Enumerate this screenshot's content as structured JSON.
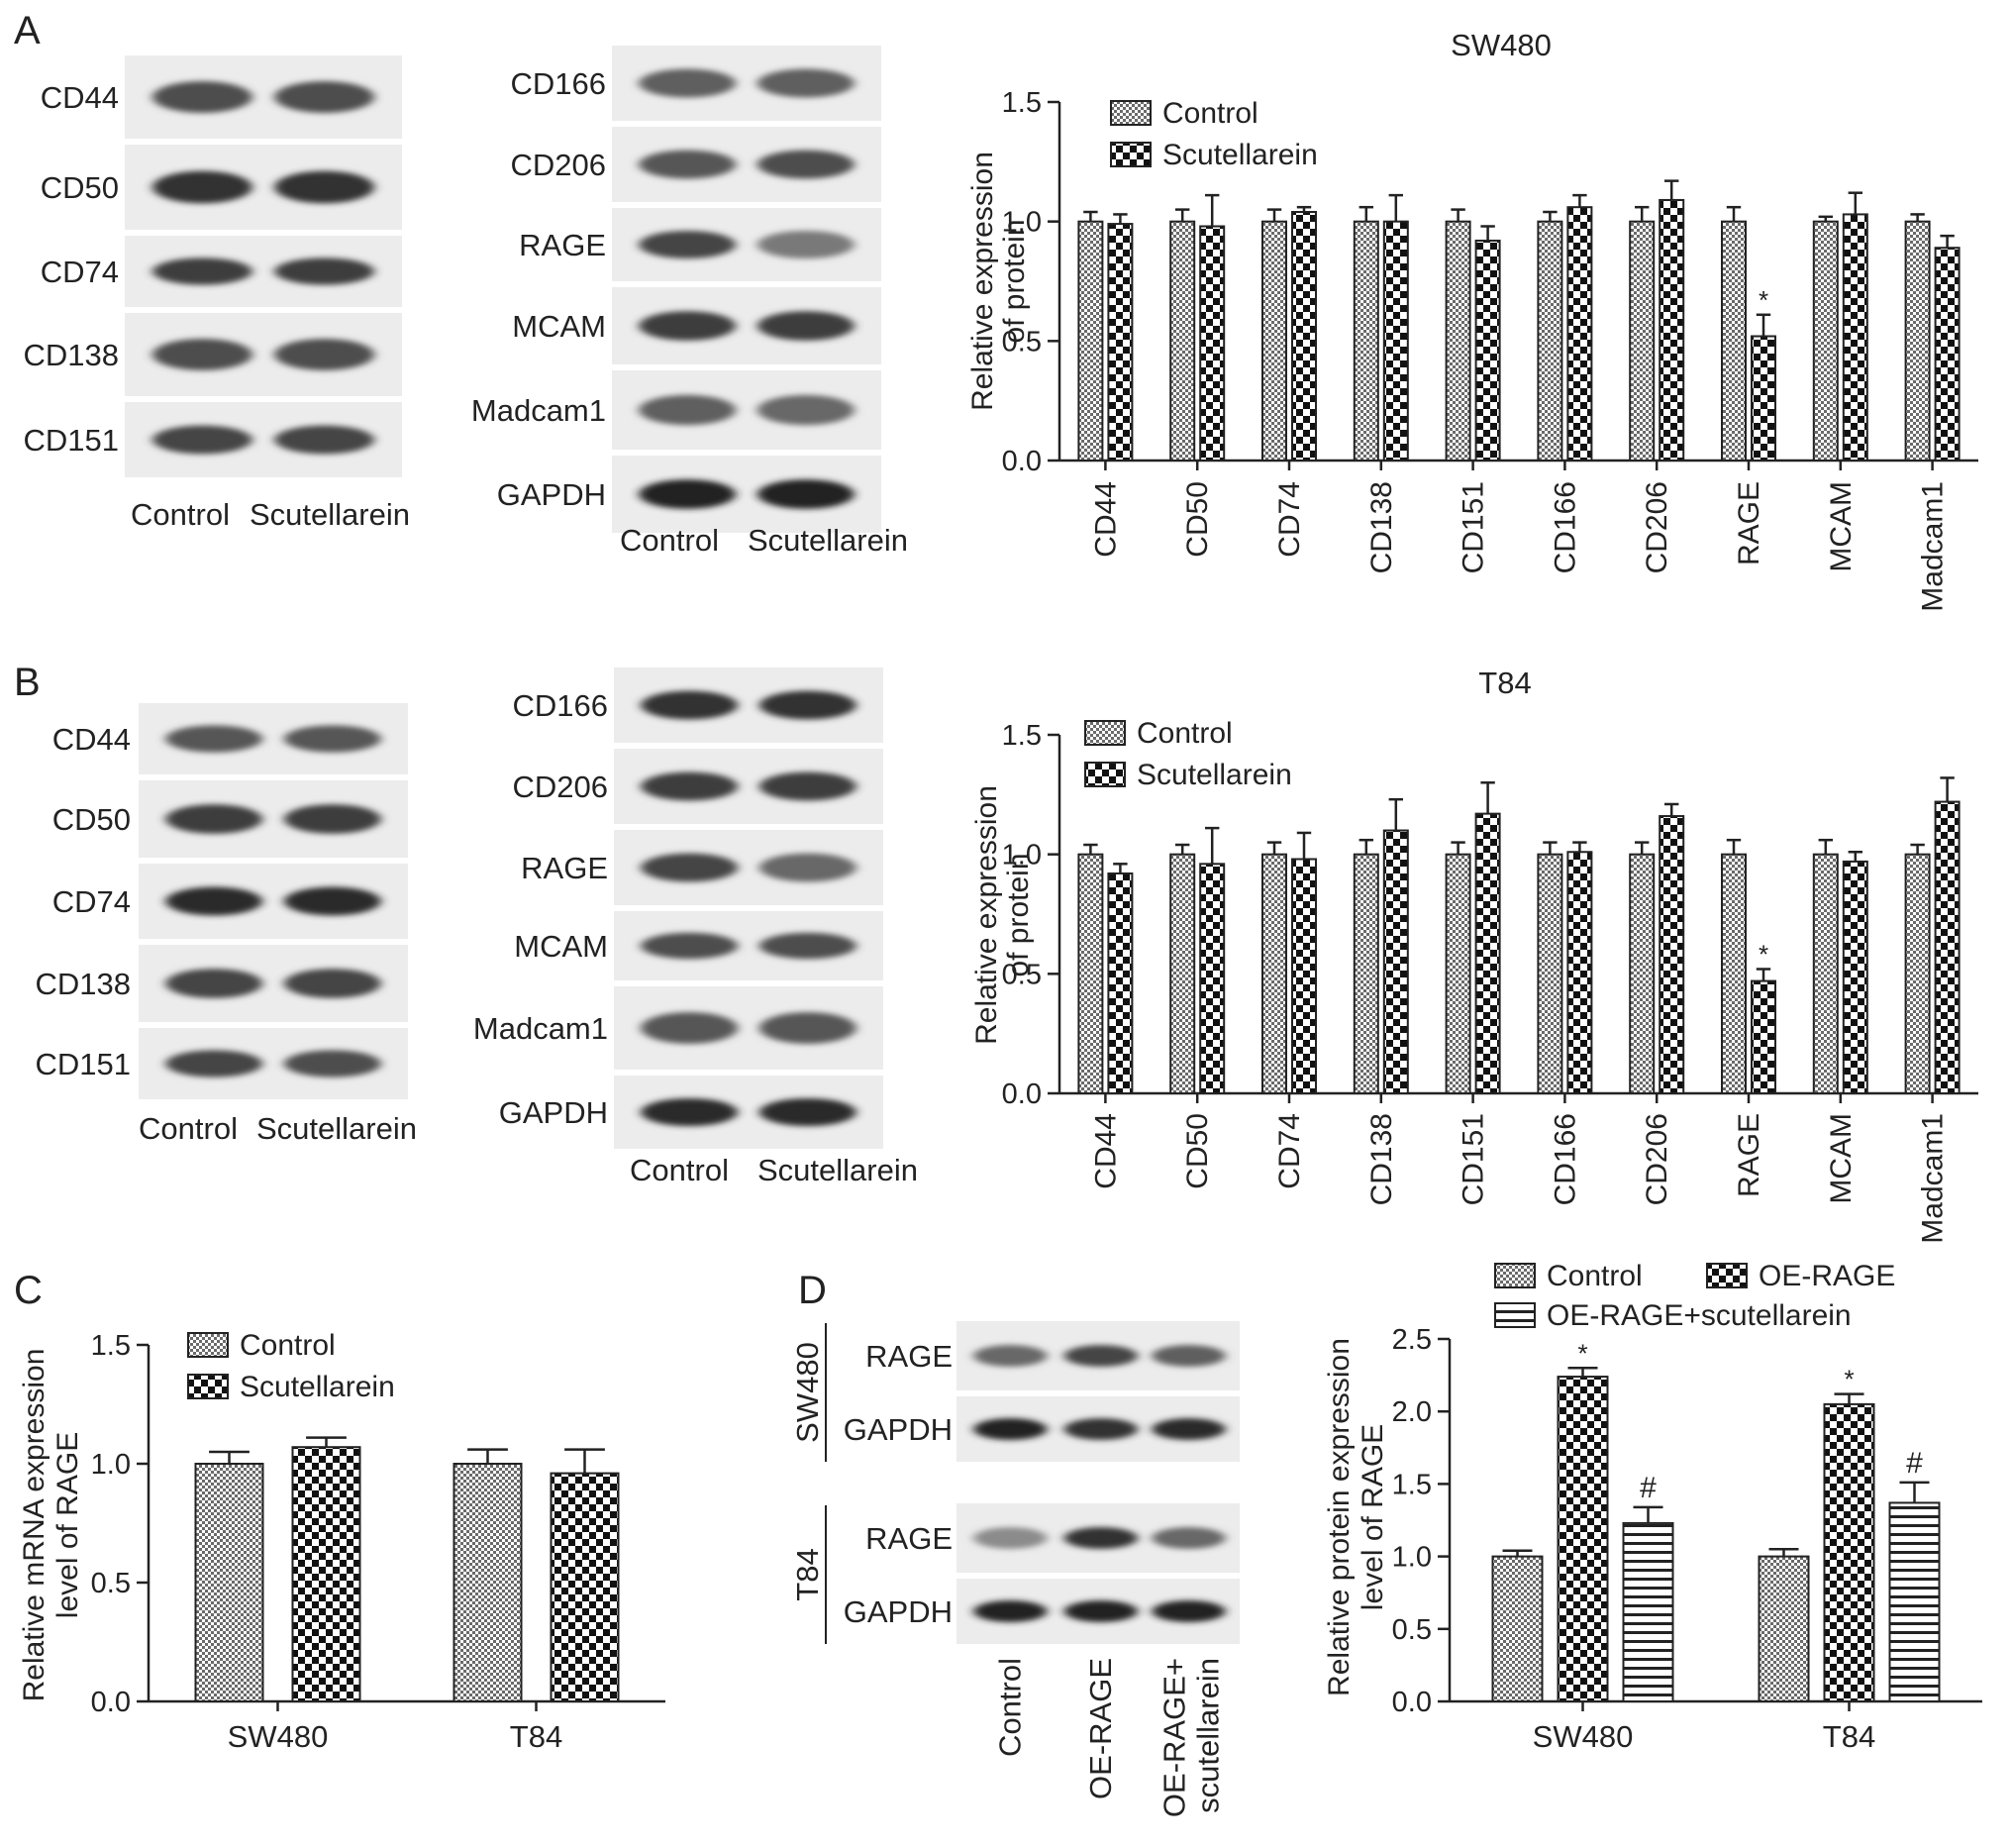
{
  "panels": [
    {
      "letter": "A",
      "blot_groups": [
        {
          "bands": [
            "CD44",
            "CD50",
            "CD74",
            "CD138",
            "CD151"
          ],
          "lanes": [
            "Control",
            "Scutellarein"
          ],
          "intensity": [
            [
              0.7,
              0.7
            ],
            [
              0.85,
              0.85
            ],
            [
              0.8,
              0.8
            ],
            [
              0.7,
              0.7
            ],
            [
              0.75,
              0.75
            ]
          ]
        },
        {
          "bands": [
            "CD166",
            "CD206",
            "RAGE",
            "MCAM",
            "Madcam1",
            "GAPDH"
          ],
          "lanes": [
            "Control",
            "Scutellarein"
          ],
          "intensity": [
            [
              0.6,
              0.6
            ],
            [
              0.65,
              0.7
            ],
            [
              0.75,
              0.45
            ],
            [
              0.8,
              0.8
            ],
            [
              0.6,
              0.55
            ],
            [
              0.95,
              0.95
            ]
          ]
        }
      ]
    },
    {
      "letter": "B",
      "blot_groups": [
        {
          "bands": [
            "CD44",
            "CD50",
            "CD74",
            "CD138",
            "CD151"
          ],
          "lanes": [
            "Control",
            "Scutellarein"
          ],
          "intensity": [
            [
              0.65,
              0.65
            ],
            [
              0.8,
              0.8
            ],
            [
              0.9,
              0.9
            ],
            [
              0.75,
              0.75
            ],
            [
              0.75,
              0.7
            ]
          ]
        },
        {
          "bands": [
            "CD166",
            "CD206",
            "RAGE",
            "MCAM",
            "Madcam1",
            "GAPDH"
          ],
          "lanes": [
            "Control",
            "Scutellarein"
          ],
          "intensity": [
            [
              0.85,
              0.85
            ],
            [
              0.8,
              0.8
            ],
            [
              0.75,
              0.55
            ],
            [
              0.7,
              0.7
            ],
            [
              0.65,
              0.65
            ],
            [
              0.9,
              0.9
            ]
          ]
        }
      ]
    },
    {
      "letter": "C"
    },
    {
      "letter": "D",
      "blot": {
        "groups": [
          "SW480",
          "T84"
        ],
        "bands": [
          "RAGE",
          "GAPDH"
        ],
        "lanes": [
          "Control",
          "OE-RAGE",
          "OE-RAGE+ scutellarein"
        ],
        "intensity": [
          [
            [
              0.55,
              0.75,
              0.6
            ],
            [
              0.95,
              0.85,
              0.9
            ]
          ],
          [
            [
              0.35,
              0.85,
              0.55
            ],
            [
              0.95,
              0.95,
              0.95
            ]
          ]
        ]
      }
    }
  ],
  "chart_data": [
    {
      "type": "bar",
      "panel": "A",
      "title": "SW480",
      "ylabel": "Relative expression of protein",
      "ylim": [
        0,
        1.5
      ],
      "yticks": [
        "0.0",
        "0.5",
        "1.0",
        "1.5"
      ],
      "categories": [
        "CD44",
        "CD50",
        "CD74",
        "CD138",
        "CD151",
        "CD166",
        "CD206",
        "RAGE",
        "MCAM",
        "Madcam1"
      ],
      "series": [
        {
          "name": "Control",
          "values": [
            1.0,
            1.0,
            1.0,
            1.0,
            1.0,
            1.0,
            1.0,
            1.0,
            1.0,
            1.0
          ],
          "errors": [
            0.04,
            0.05,
            0.05,
            0.06,
            0.05,
            0.04,
            0.06,
            0.06,
            0.02,
            0.03
          ]
        },
        {
          "name": "Scutellarein",
          "values": [
            0.99,
            0.98,
            1.04,
            1.0,
            0.92,
            1.06,
            1.09,
            0.52,
            1.03,
            0.89
          ],
          "errors": [
            0.04,
            0.13,
            0.02,
            0.11,
            0.06,
            0.05,
            0.08,
            0.09,
            0.09,
            0.05
          ]
        }
      ],
      "annotations": [
        "",
        "",
        "",
        "",
        "",
        "",
        "",
        "*",
        "",
        ""
      ],
      "legend": "top-left"
    },
    {
      "type": "bar",
      "panel": "B",
      "title": "T84",
      "ylabel": "Relative expression of protein",
      "ylim": [
        0,
        1.5
      ],
      "yticks": [
        "0.0",
        "0.5",
        "1.0",
        "1.5"
      ],
      "categories": [
        "CD44",
        "CD50",
        "CD74",
        "CD138",
        "CD151",
        "CD166",
        "CD206",
        "RAGE",
        "MCAM",
        "Madcam1"
      ],
      "series": [
        {
          "name": "Control",
          "values": [
            1.0,
            1.0,
            1.0,
            1.0,
            1.0,
            1.0,
            1.0,
            1.0,
            1.0,
            1.0
          ],
          "errors": [
            0.04,
            0.04,
            0.05,
            0.06,
            0.05,
            0.05,
            0.05,
            0.06,
            0.06,
            0.04
          ]
        },
        {
          "name": "Scutellarein",
          "values": [
            0.92,
            0.96,
            0.98,
            1.1,
            1.17,
            1.01,
            1.16,
            0.47,
            0.97,
            1.22
          ],
          "errors": [
            0.04,
            0.15,
            0.11,
            0.13,
            0.13,
            0.04,
            0.05,
            0.05,
            0.04,
            0.1
          ]
        }
      ],
      "annotations": [
        "",
        "",
        "",
        "",
        "",
        "",
        "",
        "*",
        "",
        ""
      ],
      "legend": "top-left"
    },
    {
      "type": "bar",
      "panel": "C",
      "title": "",
      "ylabel": "Relative mRNA expression level of RAGE",
      "ylim": [
        0,
        1.5
      ],
      "yticks": [
        "0.0",
        "0.5",
        "1.0",
        "1.5"
      ],
      "categories": [
        "SW480",
        "T84"
      ],
      "series": [
        {
          "name": "Control",
          "values": [
            1.0,
            1.0
          ],
          "errors": [
            0.05,
            0.06
          ]
        },
        {
          "name": "Scutellarein",
          "values": [
            1.07,
            0.96
          ],
          "errors": [
            0.04,
            0.1
          ]
        }
      ],
      "legend": "top-left"
    },
    {
      "type": "bar",
      "panel": "D",
      "title": "",
      "ylabel": "Relative protein expression level of RAGE",
      "ylim": [
        0,
        2.5
      ],
      "yticks": [
        "0.0",
        "0.5",
        "1.0",
        "1.5",
        "2.0",
        "2.5"
      ],
      "categories": [
        "SW480",
        "T84"
      ],
      "series": [
        {
          "name": "Control",
          "values": [
            1.0,
            1.0
          ],
          "errors": [
            0.04,
            0.05
          ],
          "annotations": [
            "",
            ""
          ]
        },
        {
          "name": "OE-RAGE",
          "values": [
            2.24,
            2.05
          ],
          "errors": [
            0.06,
            0.07
          ],
          "annotations": [
            "*",
            "*"
          ]
        },
        {
          "name": "OE-RAGE+scutellarein",
          "values": [
            1.23,
            1.37
          ],
          "errors": [
            0.11,
            0.14
          ],
          "annotations": [
            "#",
            "#"
          ]
        }
      ],
      "legend": "top"
    }
  ]
}
